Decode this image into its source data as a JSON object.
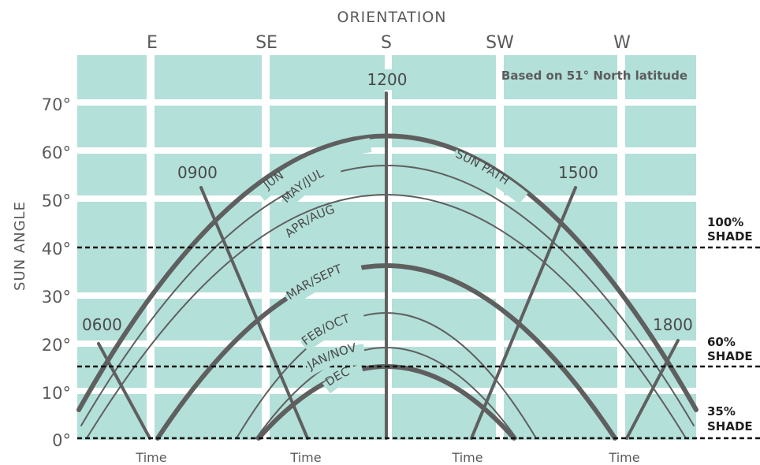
{
  "title": "ORIENTATION",
  "y_axis_label": "SUN ANGLE",
  "note": "Based on 51° North latitude",
  "orientations": [
    "E",
    "SE",
    "S",
    "SW",
    "W"
  ],
  "y_ticks": [
    "70°",
    "60°",
    "50°",
    "40°",
    "30°",
    "20°",
    "10°",
    "0°"
  ],
  "time_labels": [
    "Time",
    "Time",
    "Time",
    "Time"
  ],
  "hours": [
    "0600",
    "0900",
    "1200",
    "1500",
    "1800"
  ],
  "months": [
    "JUN",
    "MAY/JUL",
    "APR/AUG",
    "MAR/SEPT",
    "FEB/OCT",
    "JAN/NOV",
    "DEC"
  ],
  "sun_path_label": "SUN PATH",
  "shade_levels": [
    {
      "pct": "100%",
      "word": "SHADE"
    },
    {
      "pct": "60%",
      "word": "SHADE"
    },
    {
      "pct": "35%",
      "word": "SHADE"
    }
  ],
  "colors": {
    "panel": "#b3e0d9",
    "grid": "#ffffff",
    "curve": "#5f5f5f",
    "text": "#5a5a5a",
    "dash": "#111111"
  }
}
